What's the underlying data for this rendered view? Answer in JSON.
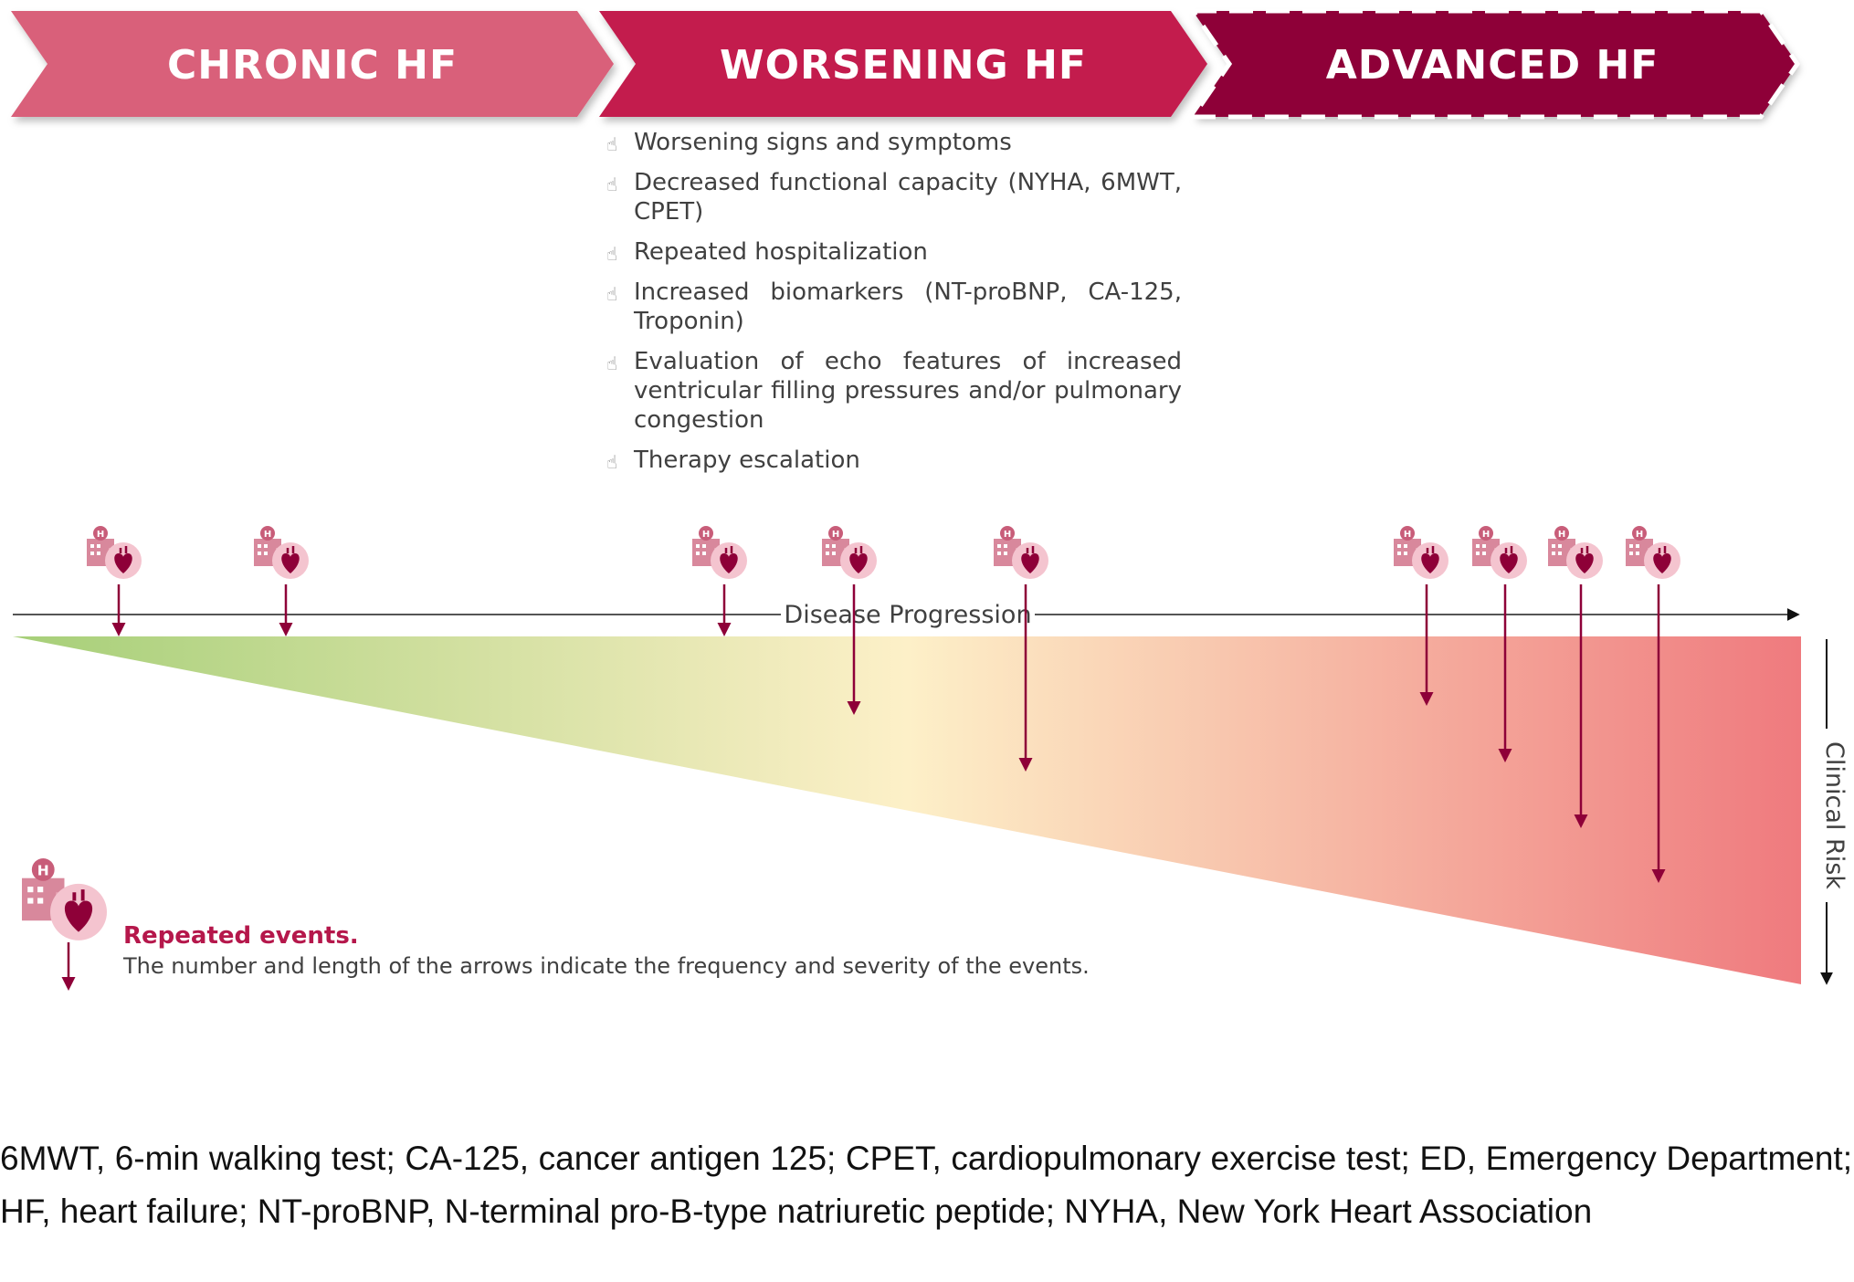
{
  "stages": [
    {
      "label": "CHRONIC HF",
      "color": "#d9607a"
    },
    {
      "label": "WORSENING HF",
      "color": "#c31e4e"
    },
    {
      "label": "ADVANCED HF",
      "color": "#8e0038"
    }
  ],
  "criteria": {
    "icon": "hand-pointer-icon",
    "items": [
      "Worsening signs and symptoms",
      "Decreased functional capacity (NYHA, 6MWT, CPET)",
      "Repeated hospitalization",
      "Increased biomarkers (NT-proBNP, CA-125, Troponin)",
      "Evaluation of echo features of increased ventricular filling pressures and/or pulmonary congestion",
      "Therapy escalation"
    ]
  },
  "axes": {
    "x_label": "Disease Progression",
    "y_label": "Clinical Risk"
  },
  "events": {
    "icon": "hospital-heart-icon",
    "arrow_color": "#8e0038",
    "count": 10
  },
  "legend": {
    "title": "Repeated events.",
    "description": "The number and length of the arrows indicate the frequency and severity of the events."
  },
  "gradient_colors": [
    "#a6cf78",
    "#fdf0c8",
    "#ef7a7e"
  ],
  "footnote": "6MWT, 6-min walking test; CA-125, cancer antigen 125; CPET, cardiopulmonary exercise test; ED, Emergency Department; HF, heart failure; NT-proBNP, N-terminal pro-B-type natriuretic peptide; NYHA, New York Heart Association"
}
